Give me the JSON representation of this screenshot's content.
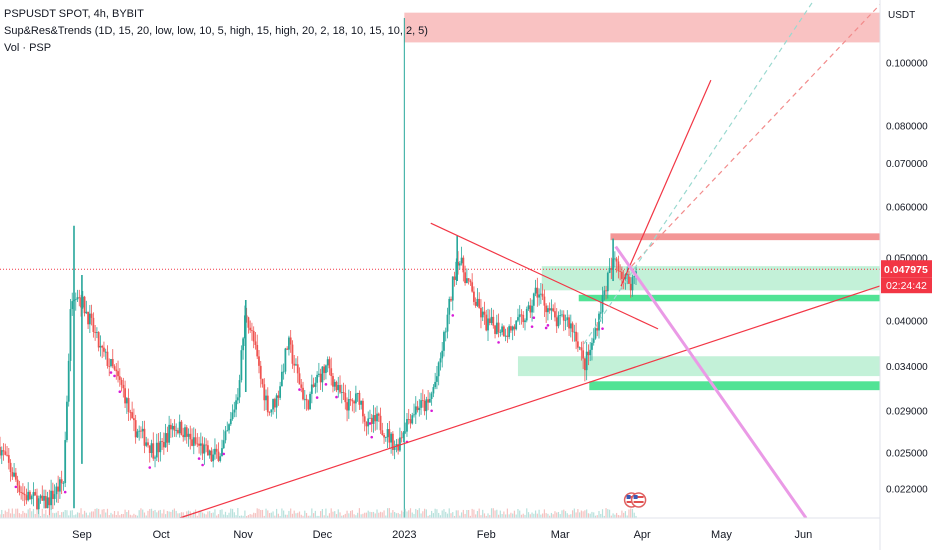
{
  "legend": {
    "symbol_line": "PSPUSDT SPOT, 4h, BYBIT",
    "indicator_line": "Sup&Res&Trends (1D, 15, 20, low, low, 10, 5, high, 15, high, 20, 2, 18, 10, 15, 10, 2, 5)",
    "volume_line": "Vol · PSP"
  },
  "chart_data": {
    "type": "candlestick",
    "symbol": "PSPUSDT SPOT",
    "interval": "4h",
    "exchange": "BYBIT",
    "currency_label": "USDT",
    "y_scale": "log",
    "ylim": [
      0.0198,
      0.125
    ],
    "y_ticks": [
      "0.100000",
      "0.080000",
      "0.070000",
      "0.060000",
      "0.050000",
      "0.040000",
      "0.034000",
      "0.029000",
      "0.025000",
      "0.022000"
    ],
    "y_tick_values": [
      0.1,
      0.08,
      0.07,
      0.06,
      0.05,
      0.04,
      0.034,
      0.029,
      0.025,
      0.022
    ],
    "x_ticks": [
      "Sep",
      "Oct",
      "Nov",
      "Dec",
      "2023",
      "Feb",
      "Mar",
      "Apr",
      "May",
      "Jun"
    ],
    "x_tick_dates": [
      "2022-09-01",
      "2022-10-01",
      "2022-11-01",
      "2022-12-01",
      "2023-01-01",
      "2023-02-01",
      "2023-03-01",
      "2023-04-01",
      "2023-05-01",
      "2023-06-01"
    ],
    "xlim": [
      "2022-08-01",
      "2023-06-30"
    ],
    "last_price_label": "0.047975",
    "countdown_label": "02:24:42",
    "last_price": 0.047975,
    "price_path": [
      [
        "2022-08-01",
        0.0255
      ],
      [
        "2022-08-05",
        0.0235
      ],
      [
        "2022-08-10",
        0.0215
      ],
      [
        "2022-08-18",
        0.0208
      ],
      [
        "2022-08-25",
        0.0225
      ],
      [
        "2022-08-28",
        0.044
      ],
      [
        "2022-08-30",
        0.0445
      ],
      [
        "2022-09-03",
        0.041
      ],
      [
        "2022-09-08",
        0.036
      ],
      [
        "2022-09-12",
        0.034
      ],
      [
        "2022-09-17",
        0.031
      ],
      [
        "2022-09-20",
        0.0275
      ],
      [
        "2022-09-25",
        0.0262
      ],
      [
        "2022-09-28",
        0.0252
      ],
      [
        "2022-10-01",
        0.0255
      ],
      [
        "2022-10-05",
        0.0275
      ],
      [
        "2022-10-09",
        0.0272
      ],
      [
        "2022-10-12",
        0.026
      ],
      [
        "2022-10-16",
        0.0255
      ],
      [
        "2022-10-20",
        0.0245
      ],
      [
        "2022-10-24",
        0.0252
      ],
      [
        "2022-10-27",
        0.0275
      ],
      [
        "2022-10-30",
        0.031
      ],
      [
        "2022-11-02",
        0.0415
      ],
      [
        "2022-11-05",
        0.037
      ],
      [
        "2022-11-08",
        0.032
      ],
      [
        "2022-11-11",
        0.029
      ],
      [
        "2022-11-14",
        0.0305
      ],
      [
        "2022-11-18",
        0.037
      ],
      [
        "2022-11-21",
        0.0335
      ],
      [
        "2022-11-25",
        0.0295
      ],
      [
        "2022-11-29",
        0.0325
      ],
      [
        "2022-12-03",
        0.034
      ],
      [
        "2022-12-07",
        0.031
      ],
      [
        "2022-12-11",
        0.0295
      ],
      [
        "2022-12-15",
        0.0305
      ],
      [
        "2022-12-18",
        0.0275
      ],
      [
        "2022-12-22",
        0.028
      ],
      [
        "2022-12-26",
        0.0265
      ],
      [
        "2022-12-29",
        0.0255
      ],
      [
        "2023-01-02",
        0.028
      ],
      [
        "2023-01-06",
        0.0295
      ],
      [
        "2023-01-10",
        0.0295
      ],
      [
        "2023-01-14",
        0.0335
      ],
      [
        "2023-01-18",
        0.042
      ],
      [
        "2023-01-21",
        0.0505
      ],
      [
        "2023-01-24",
        0.047
      ],
      [
        "2023-01-28",
        0.0425
      ],
      [
        "2023-02-01",
        0.0395
      ],
      [
        "2023-02-05",
        0.0392
      ],
      [
        "2023-02-09",
        0.0385
      ],
      [
        "2023-02-13",
        0.0395
      ],
      [
        "2023-02-17",
        0.041
      ],
      [
        "2023-02-20",
        0.0445
      ],
      [
        "2023-02-24",
        0.042
      ],
      [
        "2023-02-28",
        0.0395
      ],
      [
        "2023-03-03",
        0.0405
      ],
      [
        "2023-03-07",
        0.038
      ],
      [
        "2023-03-10",
        0.034
      ],
      [
        "2023-03-13",
        0.0365
      ],
      [
        "2023-03-16",
        0.0415
      ],
      [
        "2023-03-19",
        0.0465
      ],
      [
        "2023-03-22",
        0.05
      ],
      [
        "2023-03-25",
        0.0465
      ],
      [
        "2023-03-28",
        0.0458
      ],
      [
        "2023-03-30",
        0.047975
      ]
    ],
    "spikes": [
      {
        "date": "2022-08-29",
        "high": 0.056,
        "low": 0.0205
      },
      {
        "date": "2022-09-01",
        "high": 0.047,
        "low": 0.024
      },
      {
        "date": "2022-11-02",
        "high": 0.043,
        "low": 0.031
      },
      {
        "date": "2023-01-21",
        "high": 0.054,
        "low": 0.046
      },
      {
        "date": "2023-03-21",
        "high": 0.0535,
        "low": 0.046
      }
    ],
    "zones": [
      {
        "kind": "resistance",
        "color": "#f7a8a8",
        "from": "2023-01-01",
        "to": "2023-06-30",
        "low": 0.1075,
        "high": 0.1195
      },
      {
        "kind": "resistance",
        "color": "#f28b8b",
        "from": "2023-03-20",
        "to": "2023-06-30",
        "low": 0.0532,
        "high": 0.0545
      },
      {
        "kind": "support",
        "color": "#bdf0d4",
        "from": "2023-02-22",
        "to": "2023-06-30",
        "low": 0.0445,
        "high": 0.0485
      },
      {
        "kind": "support",
        "color": "#3ee08a",
        "from": "2023-03-08",
        "to": "2023-06-30",
        "low": 0.0428,
        "high": 0.0438
      },
      {
        "kind": "support",
        "color": "#bdf0d4",
        "from": "2023-02-13",
        "to": "2023-06-30",
        "low": 0.0328,
        "high": 0.0352
      },
      {
        "kind": "support",
        "color": "#3ee08a",
        "from": "2023-03-12",
        "to": "2023-06-30",
        "low": 0.0312,
        "high": 0.0322
      }
    ],
    "trendlines": [
      {
        "style": "solid",
        "color": "#f23645",
        "from": [
          "2022-10-08",
          0.0198
        ],
        "to": [
          "2023-06-30",
          0.0452
        ]
      },
      {
        "style": "solid",
        "color": "#f23645",
        "from": [
          "2023-01-11",
          0.0565
        ],
        "to": [
          "2023-04-07",
          0.0388
        ]
      },
      {
        "style": "solid",
        "color": "#f23645",
        "from": [
          "2023-03-24",
          0.0452
        ],
        "to": [
          "2023-04-27",
          0.094
        ]
      },
      {
        "style": "dashed",
        "color": "#f28b8b",
        "from": [
          "2023-03-28",
          0.0485
        ],
        "to": [
          "2023-06-30",
          0.123
        ]
      },
      {
        "style": "dashed",
        "color": "#9ad9d0",
        "from": [
          "2023-03-10",
          0.0368
        ],
        "to": [
          "2023-06-05",
          0.125
        ]
      },
      {
        "style": "solid",
        "color": "#ea9ae6",
        "width": 3,
        "from": [
          "2023-03-22",
          0.052
        ],
        "to": [
          "2023-06-02",
          0.0198
        ]
      }
    ],
    "event_lines": [
      {
        "date": "2023-01-01",
        "color": "#26a69a"
      }
    ]
  }
}
